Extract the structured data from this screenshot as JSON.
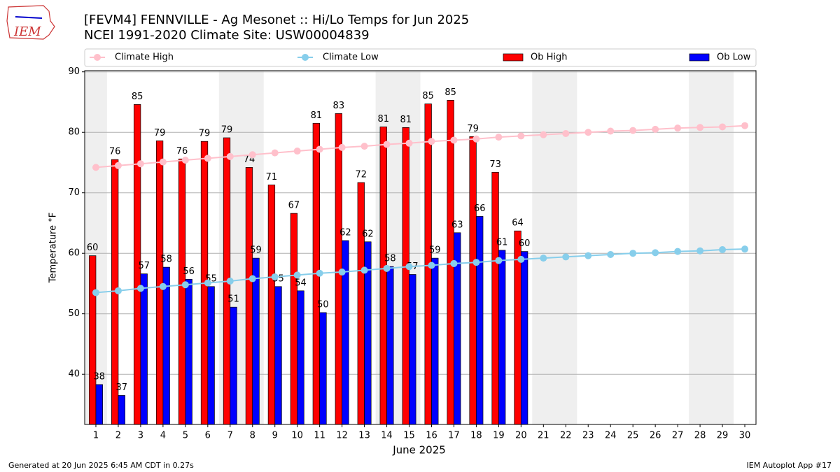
{
  "chart_data": {
    "type": "bar",
    "title": "[FEVM4] FENNVILLE - Ag Mesonet :: Hi/Lo Temps for Jun 2025",
    "subtitle": "NCEI 1991-2020 Climate Site: USW00004839",
    "logo_text": "IEM",
    "x_label": "June 2025",
    "y_label": "Temperature °F",
    "footer_left": "Generated at 20 Jun 2025 6:45 AM CDT in 0.27s",
    "footer_right": "IEM Autoplot App #17",
    "x": [
      1,
      2,
      3,
      4,
      5,
      6,
      7,
      8,
      9,
      10,
      11,
      12,
      13,
      14,
      15,
      16,
      17,
      18,
      19,
      20,
      21,
      22,
      23,
      24,
      25,
      26,
      27,
      28,
      29,
      30
    ],
    "xlim": [
      0.5,
      30.5
    ],
    "xticks": [
      1,
      2,
      3,
      4,
      5,
      6,
      7,
      8,
      9,
      10,
      11,
      12,
      13,
      14,
      15,
      16,
      17,
      18,
      19,
      20,
      21,
      22,
      23,
      24,
      25,
      26,
      27,
      28,
      29,
      30
    ],
    "ylim": [
      31.7,
      90.2
    ],
    "yticks": [
      40,
      50,
      60,
      70,
      80,
      90
    ],
    "grid": true,
    "weekend_spans": [
      [
        0.5,
        1.5
      ],
      [
        6.5,
        8.5
      ],
      [
        13.5,
        15.5
      ],
      [
        20.5,
        22.5
      ],
      [
        27.5,
        29.5
      ]
    ],
    "series": [
      {
        "name": "Climate High",
        "kind": "line",
        "color": "#ffc0cb",
        "values": [
          74.2,
          74.5,
          74.8,
          75.1,
          75.4,
          75.7,
          76.0,
          76.3,
          76.6,
          76.9,
          77.2,
          77.5,
          77.7,
          78.0,
          78.2,
          78.5,
          78.7,
          78.9,
          79.2,
          79.4,
          79.6,
          79.8,
          80.0,
          80.2,
          80.3,
          80.5,
          80.7,
          80.8,
          80.9,
          81.1
        ]
      },
      {
        "name": "Climate Low",
        "kind": "line",
        "color": "#87ceeb",
        "values": [
          53.5,
          53.8,
          54.2,
          54.5,
          54.8,
          55.1,
          55.4,
          55.8,
          56.1,
          56.4,
          56.7,
          56.9,
          57.2,
          57.5,
          57.8,
          58.0,
          58.3,
          58.5,
          58.8,
          59.0,
          59.2,
          59.4,
          59.6,
          59.8,
          60.0,
          60.1,
          60.3,
          60.4,
          60.6,
          60.7
        ]
      },
      {
        "name": "Ob High",
        "kind": "bar",
        "color": "#ff0000",
        "values": [
          59.6,
          75.5,
          84.6,
          78.6,
          75.6,
          78.5,
          79.1,
          74.2,
          71.3,
          66.6,
          81.5,
          83.1,
          71.7,
          80.9,
          80.8,
          84.7,
          85.3,
          79.3,
          73.4,
          63.7,
          null,
          null,
          null,
          null,
          null,
          null,
          null,
          null,
          null,
          null
        ],
        "value_labels": [
          "60",
          "76",
          "85",
          "79",
          "76",
          "79",
          "79",
          "74",
          "71",
          "67",
          "81",
          "83",
          "72",
          "81",
          "81",
          "85",
          "85",
          "79",
          "73",
          "64",
          null,
          null,
          null,
          null,
          null,
          null,
          null,
          null,
          null,
          null
        ]
      },
      {
        "name": "Ob Low",
        "kind": "bar",
        "color": "#0000ff",
        "values": [
          38.3,
          36.5,
          56.6,
          57.7,
          55.7,
          54.5,
          51.1,
          59.2,
          54.5,
          53.8,
          50.2,
          62.1,
          61.9,
          57.8,
          56.5,
          59.2,
          63.4,
          66.1,
          60.5,
          60.3,
          null,
          null,
          null,
          null,
          null,
          null,
          null,
          null,
          null,
          null
        ],
        "value_labels": [
          "38",
          "37",
          "57",
          "58",
          "56",
          "55",
          "51",
          "59",
          "55",
          "54",
          "50",
          "62",
          "62",
          "58",
          "57",
          "59",
          "63",
          "66",
          "61",
          "60",
          null,
          null,
          null,
          null,
          null,
          null,
          null,
          null,
          null,
          null
        ]
      }
    ]
  }
}
